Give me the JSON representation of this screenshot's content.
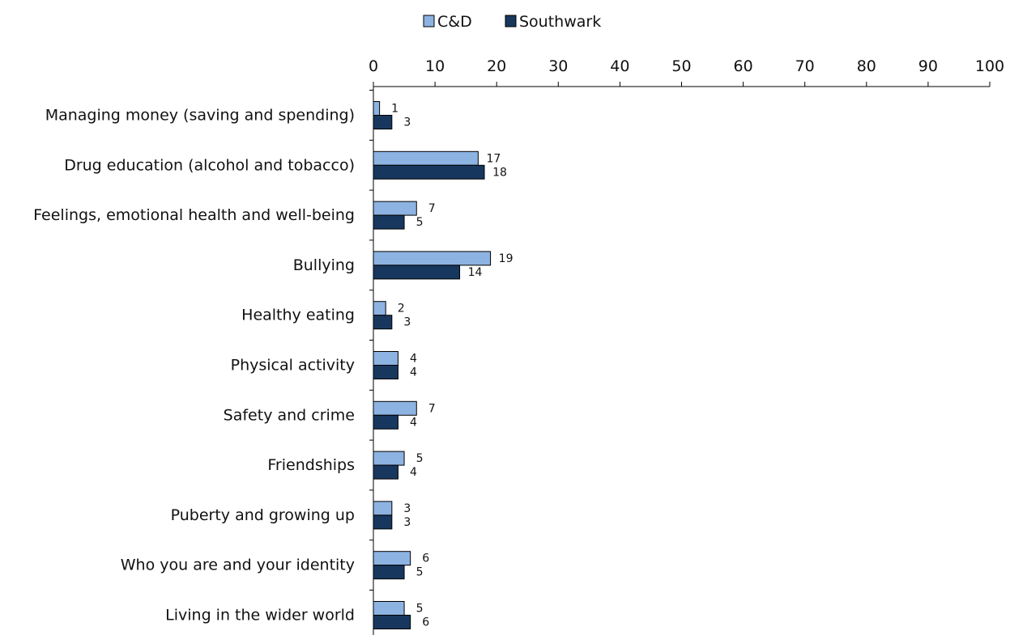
{
  "chart_data": {
    "type": "bar",
    "orientation": "horizontal",
    "categories": [
      "Managing money (saving and spending)",
      "Drug education (alcohol and tobacco)",
      "Feelings, emotional health and well-being",
      "Bullying",
      "Healthy eating",
      "Physical activity",
      "Safety and crime",
      "Friendships",
      "Puberty and growing up",
      "Who you are and your identity",
      "Living in the wider world"
    ],
    "series": [
      {
        "name": "C&D",
        "color": "#8db3e2",
        "values": [
          1,
          17,
          7,
          19,
          2,
          4,
          7,
          5,
          3,
          6,
          5
        ]
      },
      {
        "name": "Southwark",
        "color": "#17375e",
        "values": [
          3,
          18,
          5,
          14,
          3,
          4,
          4,
          4,
          3,
          5,
          6
        ]
      }
    ],
    "xlim": [
      0,
      100
    ],
    "xticks": [
      "0",
      "10",
      "20",
      "30",
      "40",
      "50",
      "60",
      "70",
      "80",
      "90",
      "100"
    ],
    "axis_position": "top",
    "legend_position": "top",
    "grid": false,
    "data_labels": true
  }
}
